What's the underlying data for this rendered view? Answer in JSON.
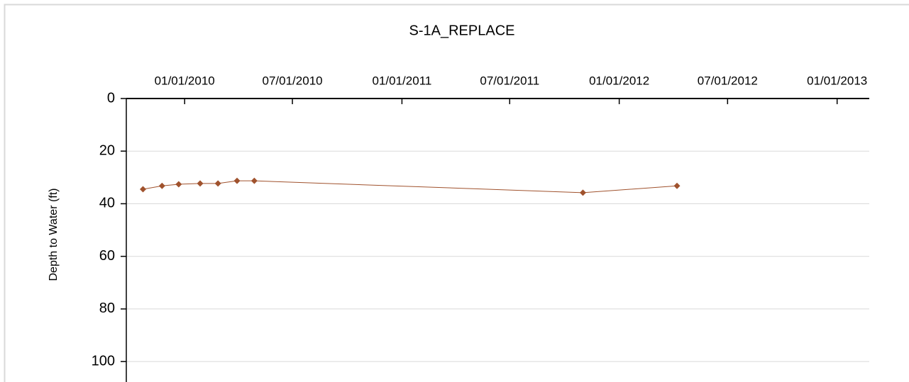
{
  "chart_data": {
    "type": "line",
    "title": "S-1A_REPLACE",
    "y_label": "Depth to Water (ft)",
    "x": [
      "2009-10-23",
      "2009-11-24",
      "2009-12-22",
      "2010-01-27",
      "2010-02-26",
      "2010-03-30",
      "2010-04-28",
      "2011-11-01",
      "2012-04-07"
    ],
    "series": [
      {
        "name": "S-1A_REPLACE",
        "color": "#a0522d",
        "values": [
          34.5,
          33.2,
          32.6,
          32.3,
          32.3,
          31.3,
          31.3,
          35.8,
          33.2
        ]
      }
    ],
    "xlim": [
      "2009-09-25",
      "2013-02-24"
    ],
    "xticks": [
      {
        "value": "2010-01-01",
        "label": "01/01/2010"
      },
      {
        "value": "2010-07-01",
        "label": "07/01/2010"
      },
      {
        "value": "2011-01-01",
        "label": "01/01/2011"
      },
      {
        "value": "2011-07-01",
        "label": "07/01/2011"
      },
      {
        "value": "2012-01-01",
        "label": "01/01/2012"
      },
      {
        "value": "2012-07-01",
        "label": "07/01/2012"
      },
      {
        "value": "2013-01-01",
        "label": "01/01/2013"
      }
    ],
    "ylim": [
      0,
      104
    ],
    "yticks": [
      0,
      20,
      40,
      60,
      80,
      100
    ],
    "y_inverted": true,
    "x_axis_position": "top",
    "grid": true
  }
}
